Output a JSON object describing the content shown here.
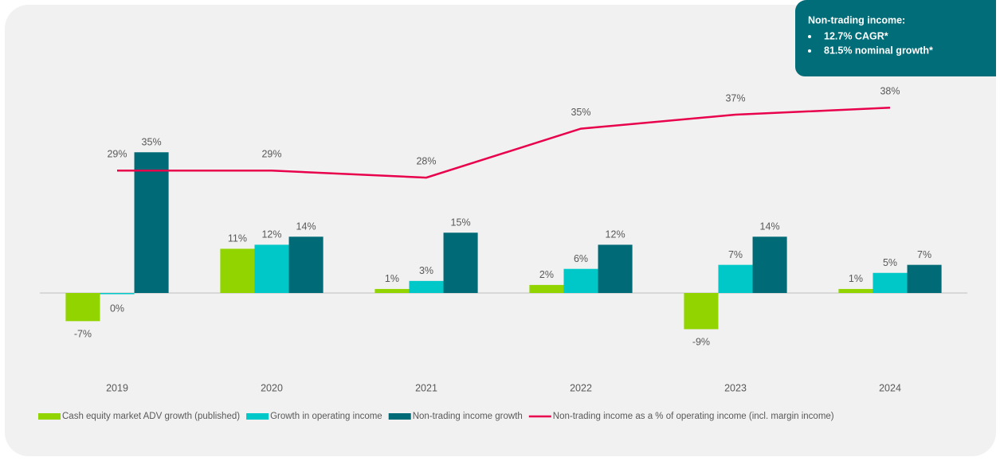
{
  "chart_data": {
    "type": "bar",
    "categories": [
      "2019",
      "2020",
      "2021",
      "2022",
      "2023",
      "2024"
    ],
    "series": [
      {
        "name": "Cash equity market ADV growth (published)",
        "type": "bar",
        "color": "#92d400",
        "values": [
          -7,
          11,
          1,
          2,
          -9,
          1
        ],
        "value_labels": [
          "-7%",
          "11%",
          "1%",
          "2%",
          "-9%",
          "1%"
        ]
      },
      {
        "name": "Growth in operating income",
        "type": "bar",
        "color": "#00c8c8",
        "values": [
          0,
          12,
          3,
          6,
          7,
          5
        ],
        "value_labels": [
          "0%",
          "12%",
          "3%",
          "6%",
          "7%",
          "5%"
        ]
      },
      {
        "name": "Non-trading income growth",
        "type": "bar",
        "color": "#006b77",
        "values": [
          35,
          14,
          15,
          12,
          14,
          7
        ],
        "value_labels": [
          "35%",
          "14%",
          "15%",
          "12%",
          "14%",
          "7%"
        ]
      },
      {
        "name": "Non-trading income as a % of operating income (incl. margin income)",
        "type": "line",
        "axis": "y2",
        "color": "#e8004c",
        "values": [
          29,
          29,
          28,
          35,
          37,
          38
        ],
        "value_labels": [
          "29%",
          "29%",
          "28%",
          "35%",
          "37%",
          "38%"
        ]
      }
    ],
    "ylim": [
      -20,
      60
    ],
    "y2lim": [
      0,
      46
    ],
    "legend": "bottom",
    "annotation": {
      "title": "Non-trading income:",
      "items": [
        "12.7% CAGR*",
        "81.5% nominal growth*"
      ]
    }
  }
}
